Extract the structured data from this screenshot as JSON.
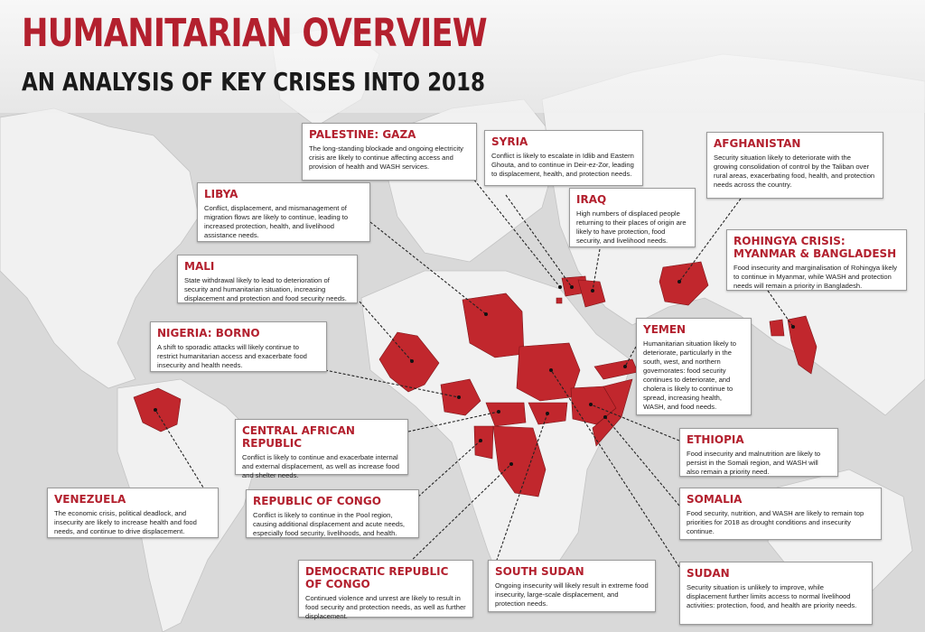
{
  "title": "HUMANITARIAN OVERVIEW",
  "subtitle": "AN ANALYSIS OF KEY CRISES INTO 2018",
  "colors": {
    "accent": "#c1272d",
    "ocean": "#d9d9d9",
    "land": "#f1f1f1",
    "text": "#1a1a1a"
  },
  "crises": [
    {
      "title": "PALESTINE: GAZA",
      "text": "The long-standing blockade and ongoing electricity crisis are likely to continue affecting access and provision of health and WASH services."
    },
    {
      "title": "SYRIA",
      "text": "Conflict is likely to escalate in Idlib and Eastern Ghouta, and to continue in Deir-ez-Zor, leading to displacement, health, and protection needs."
    },
    {
      "title": "AFGHANISTAN",
      "text": "Security situation likely to deteriorate with the growing consolidation of control by the Taliban over rural areas, exacerbating food, health, and protection needs across the country."
    },
    {
      "title": "LIBYA",
      "text": "Conflict, displacement, and mismanagement of migration flows are likely to continue, leading to increased protection, health, and livelihood assistance needs."
    },
    {
      "title": "IRAQ",
      "text": "High numbers of displaced people returning to their places of origin are likely to have protection, food security, and livelihood needs."
    },
    {
      "title": "ROHINGYA CRISIS: MYANMAR & BANGLADESH",
      "text": "Food insecurity and marginalisation of Rohingya likely to continue in Myanmar, while WASH and protection needs will remain a priority in Bangladesh."
    },
    {
      "title": "MALI",
      "text": "State withdrawal likely to lead to deterioration of security and humanitarian situation, increasing displacement and protection and food security needs."
    },
    {
      "title": "NIGERIA: BORNO",
      "text": "A shift to sporadic attacks will likely continue to restrict humanitarian access and exacerbate food insecurity and health needs."
    },
    {
      "title": "YEMEN",
      "text": "Humanitarian situation likely to deteriorate, particularly in the south, west, and northern governorates: food security continues to deteriorate, and cholera is likely to continue to spread, increasing health, WASH, and food needs."
    },
    {
      "title": "CENTRAL AFRICAN REPUBLIC",
      "text": "Conflict is likely to continue and exacerbate internal and external displacement, as well as increase food and shelter needs."
    },
    {
      "title": "ETHIOPIA",
      "text": "Food insecurity and malnutrition are likely to persist in the Somali region, and WASH will also remain a priority need."
    },
    {
      "title": "VENEZUELA",
      "text": "The economic crisis, political deadlock, and insecurity are likely to increase health and food needs, and continue to drive displacement."
    },
    {
      "title": "REPUBLIC OF CONGO",
      "text": "Conflict is likely to continue in the Pool region, causing additional displacement and acute needs, especially food security, livelihoods, and health."
    },
    {
      "title": "SOMALIA",
      "text": "Food security, nutrition, and WASH are likely to remain top priorities for 2018 as drought conditions and insecurity continue."
    },
    {
      "title": "DEMOCRATIC REPUBLIC OF CONGO",
      "text": "Continued violence and unrest are likely to result in food security and protection needs, as well as further displacement."
    },
    {
      "title": "SOUTH SUDAN",
      "text": "Ongoing insecurity will likely result in extreme food insecurity, large-scale displacement, and protection needs."
    },
    {
      "title": "SUDAN",
      "text": "Security situation is unlikely to improve, while displacement further limits access to normal livelihood activities: protection, food, and health are priority needs."
    }
  ]
}
